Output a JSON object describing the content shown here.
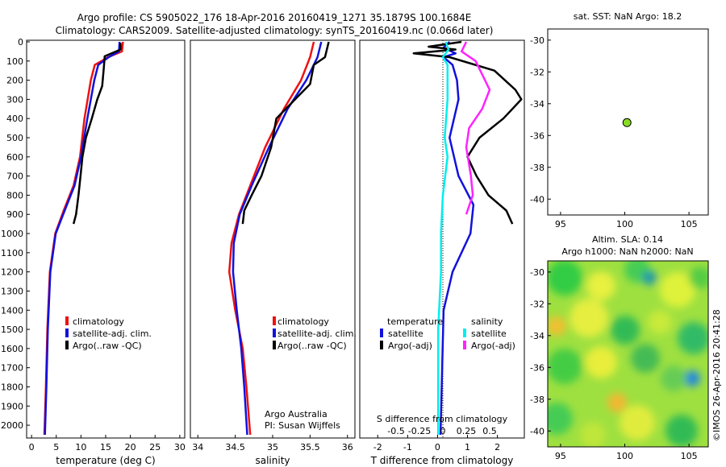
{
  "header": {
    "line1": "Argo profile: CS 5905022_176 18-Apr-2016 20160419_1271 35.1879S 100.1684E",
    "line2": "Climatology: CARS2009. Satellite-adjusted climatology: synTS_20160419.nc (0.066d later)"
  },
  "colors": {
    "climatology": "#ee1111",
    "satellite": "#1111dd",
    "argo": "#000000",
    "s_satellite": "#00eeee",
    "s_argo": "#ff22ff",
    "float_marker": "#88dd22"
  },
  "chart_data": [
    {
      "id": "temperature",
      "type": "line",
      "xlabel": "temperature (deg C)",
      "ylabel": "",
      "xlim": [
        -1,
        31
      ],
      "ylim": [
        2100,
        0
      ],
      "xticks": [
        "0",
        "5",
        "10",
        "15",
        "20",
        "25",
        "30"
      ],
      "yticks": [
        "0",
        "100",
        "200",
        "300",
        "400",
        "500",
        "600",
        "700",
        "800",
        "900",
        "1000",
        "1100",
        "1200",
        "1300",
        "1400",
        "1500",
        "1600",
        "1700",
        "1800",
        "1900",
        "2000"
      ],
      "legend": [
        "climatology",
        "satellite-adj. clim.",
        "Argo(..raw -QC)"
      ],
      "series": [
        {
          "name": "climatology",
          "color": "#ee1111",
          "points": [
            [
              18.5,
              0
            ],
            [
              18.3,
              50
            ],
            [
              15.5,
              80
            ],
            [
              12.8,
              120
            ],
            [
              12.0,
              200
            ],
            [
              10.7,
              400
            ],
            [
              9.8,
              600
            ],
            [
              8.5,
              750
            ],
            [
              6.5,
              880
            ],
            [
              4.8,
              1000
            ],
            [
              3.7,
              1200
            ],
            [
              3.2,
              1500
            ],
            [
              2.9,
              1800
            ],
            [
              2.6,
              2050
            ]
          ]
        },
        {
          "name": "satellite-adj. clim.",
          "color": "#1111dd",
          "points": [
            [
              17.8,
              0
            ],
            [
              17.7,
              50
            ],
            [
              15.6,
              80
            ],
            [
              13.5,
              120
            ],
            [
              12.7,
              200
            ],
            [
              11.3,
              400
            ],
            [
              10.0,
              600
            ],
            [
              8.7,
              750
            ],
            [
              6.7,
              880
            ],
            [
              4.9,
              1000
            ],
            [
              3.8,
              1200
            ],
            [
              3.3,
              1500
            ],
            [
              3.0,
              1800
            ],
            [
              2.7,
              2050
            ]
          ]
        },
        {
          "name": "Argo(..raw -QC)",
          "color": "#000000",
          "points": [
            [
              18.0,
              5
            ],
            [
              18.0,
              40
            ],
            [
              14.8,
              75
            ],
            [
              14.6,
              140
            ],
            [
              14.3,
              230
            ],
            [
              13.3,
              300
            ],
            [
              12.2,
              400
            ],
            [
              11.0,
              500
            ],
            [
              10.3,
              600
            ],
            [
              9.9,
              700
            ],
            [
              9.5,
              800
            ],
            [
              9.0,
              900
            ],
            [
              8.5,
              950
            ]
          ]
        }
      ]
    },
    {
      "id": "salinity",
      "type": "line",
      "xlabel": "salinity",
      "xlim": [
        33.9,
        36.1
      ],
      "ylim": [
        2100,
        0
      ],
      "xticks": [
        "34",
        "34.5",
        "35",
        "35.5",
        "36"
      ],
      "legend": [
        "climatology",
        "satellite-adj. clim.",
        "Argo(..raw -QC)"
      ],
      "series": [
        {
          "name": "climatology",
          "color": "#ee1111",
          "points": [
            [
              35.55,
              0
            ],
            [
              35.5,
              80
            ],
            [
              35.38,
              200
            ],
            [
              35.15,
              350
            ],
            [
              34.9,
              550
            ],
            [
              34.7,
              750
            ],
            [
              34.55,
              900
            ],
            [
              34.45,
              1050
            ],
            [
              34.42,
              1200
            ],
            [
              34.5,
              1400
            ],
            [
              34.6,
              1600
            ],
            [
              34.65,
              1800
            ],
            [
              34.7,
              2050
            ]
          ]
        },
        {
          "name": "satellite-adj. clim.",
          "color": "#1111dd",
          "points": [
            [
              35.65,
              0
            ],
            [
              35.6,
              80
            ],
            [
              35.45,
              200
            ],
            [
              35.2,
              350
            ],
            [
              34.95,
              550
            ],
            [
              34.72,
              750
            ],
            [
              34.56,
              900
            ],
            [
              34.48,
              1050
            ],
            [
              34.47,
              1200
            ],
            [
              34.52,
              1400
            ],
            [
              34.58,
              1600
            ],
            [
              34.62,
              1800
            ],
            [
              34.66,
              2050
            ]
          ]
        },
        {
          "name": "Argo(..raw -QC)",
          "color": "#000000",
          "points": [
            [
              35.75,
              0
            ],
            [
              35.7,
              80
            ],
            [
              35.55,
              120
            ],
            [
              35.5,
              220
            ],
            [
              35.3,
              300
            ],
            [
              35.05,
              400
            ],
            [
              34.98,
              550
            ],
            [
              34.85,
              700
            ],
            [
              34.72,
              800
            ],
            [
              34.62,
              880
            ],
            [
              34.6,
              950
            ]
          ]
        }
      ],
      "annotation": [
        "Argo Australia",
        "PI: Susan Wijffels"
      ]
    },
    {
      "id": "difference",
      "type": "line",
      "xlabel": "T difference from climatology",
      "x2label": "S difference from climatology",
      "xlim": [
        -2.6,
        2.9
      ],
      "ylim": [
        2100,
        0
      ],
      "xticks": [
        "-2",
        "-1",
        "0",
        "1",
        "2"
      ],
      "x2ticks": [
        "-0.5",
        "-0.25",
        "0",
        "0.25",
        "0.5"
      ],
      "legend_groups": {
        "temperature": [
          "satellite",
          "Argo(-adj)"
        ],
        "salinity": [
          "satellite",
          "Argo(-adj)"
        ]
      },
      "legend_titles": {
        "temperature": "temperature",
        "salinity": "salinity"
      },
      "series": [
        {
          "name": "T satellite",
          "color": "#1111dd",
          "points": [
            [
              0.4,
              0
            ],
            [
              0.2,
              30
            ],
            [
              0.6,
              60
            ],
            [
              0.2,
              80
            ],
            [
              0.5,
              120
            ],
            [
              0.65,
              200
            ],
            [
              0.7,
              300
            ],
            [
              0.4,
              500
            ],
            [
              0.7,
              700
            ],
            [
              1.2,
              850
            ],
            [
              1.1,
              1000
            ],
            [
              0.5,
              1200
            ],
            [
              0.2,
              1400
            ],
            [
              0.1,
              2050
            ]
          ]
        },
        {
          "name": "T Argo(-adj)",
          "color": "#000000",
          "points": [
            [
              0.8,
              0
            ],
            [
              -0.3,
              25
            ],
            [
              0.6,
              40
            ],
            [
              -0.8,
              60
            ],
            [
              0.4,
              80
            ],
            [
              1.9,
              150
            ],
            [
              2.6,
              250
            ],
            [
              2.8,
              300
            ],
            [
              2.2,
              400
            ],
            [
              1.4,
              500
            ],
            [
              1.0,
              600
            ],
            [
              1.3,
              700
            ],
            [
              1.7,
              800
            ],
            [
              2.3,
              880
            ],
            [
              2.5,
              950
            ]
          ]
        },
        {
          "name": "S satellite",
          "color": "#00eeee",
          "points": [
            [
              0.03,
              0
            ],
            [
              0.06,
              40
            ],
            [
              0.0,
              80
            ],
            [
              0.05,
              120
            ],
            [
              0.05,
              300
            ],
            [
              0.02,
              500
            ],
            [
              0.05,
              600
            ],
            [
              0.0,
              800
            ],
            [
              -0.02,
              1000
            ],
            [
              -0.02,
              1200
            ],
            [
              -0.05,
              1500
            ],
            [
              -0.05,
              1800
            ],
            [
              -0.05,
              2050
            ]
          ]
        },
        {
          "name": "S Argo(-adj)",
          "color": "#ff22ff",
          "points": [
            [
              0.25,
              0
            ],
            [
              0.2,
              50
            ],
            [
              0.35,
              100
            ],
            [
              0.5,
              250
            ],
            [
              0.42,
              350
            ],
            [
              0.28,
              450
            ],
            [
              0.25,
              550
            ],
            [
              0.3,
              700
            ],
            [
              0.32,
              800
            ],
            [
              0.25,
              900
            ]
          ]
        }
      ]
    },
    {
      "id": "sst_map",
      "type": "scatter",
      "title": "sat. SST: NaN Argo: 18.2",
      "xlim": [
        94,
        106.5
      ],
      "ylim": [
        -41,
        -29.3
      ],
      "xticks": [
        "95",
        "100",
        "105"
      ],
      "yticks": [
        "-30",
        "-32",
        "-34",
        "-36",
        "-38",
        "-40"
      ],
      "points": [
        [
          100.17,
          -35.19
        ]
      ]
    },
    {
      "id": "sla_map",
      "type": "heatmap",
      "title": "Altim. SLA: 0.14",
      "subtitle": "Argo h1000: NaN h2000: NaN",
      "xlim": [
        94,
        106.5
      ],
      "ylim": [
        -41,
        -29.3
      ],
      "xticks": [
        "95",
        "100",
        "105"
      ],
      "yticks": [
        "-30",
        "-32",
        "-34",
        "-36",
        "-38",
        "-40"
      ]
    }
  ],
  "credit": "©IMOS 26-Apr-2016 20:41:28"
}
